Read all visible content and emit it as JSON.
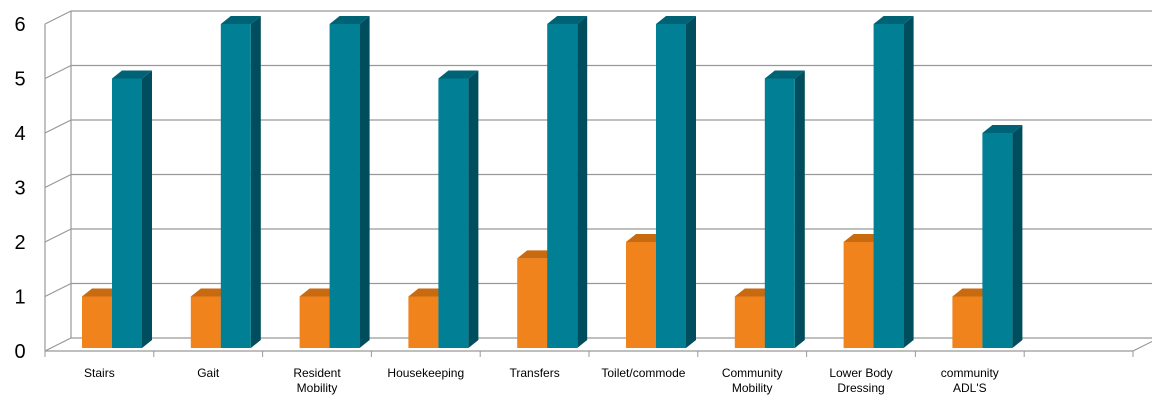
{
  "chart_data": {
    "type": "bar",
    "title": "",
    "xlabel": "",
    "ylabel": "",
    "ylim": [
      0,
      6
    ],
    "yticks": [
      0,
      1,
      2,
      3,
      4,
      5,
      6
    ],
    "grid": true,
    "legend": "none",
    "categories": [
      [
        "Stairs"
      ],
      [
        "Gait"
      ],
      [
        "Resident",
        "Mobility"
      ],
      [
        "Housekeeping"
      ],
      [
        "Transfers"
      ],
      [
        "Toilet/commode"
      ],
      [
        "Community",
        "Mobility"
      ],
      [
        "Lower Body",
        "Dressing"
      ],
      [
        "community",
        "ADL'S"
      ],
      [
        ""
      ]
    ],
    "series": [
      {
        "values": [
          1,
          1,
          1,
          1,
          1.7,
          2,
          1,
          2,
          1,
          null
        ]
      },
      {
        "values": [
          5,
          6,
          6,
          5,
          6,
          6,
          5,
          6,
          4,
          null
        ]
      }
    ],
    "colors": {
      "series1_front": "#F0831B",
      "series1_side": "#B65A08",
      "series1_top": "#C86A10",
      "series2_front": "#007F95",
      "series2_side": "#004E5D",
      "series2_top": "#006375",
      "grid": "#999999",
      "floor": "#d9d9d9"
    }
  }
}
